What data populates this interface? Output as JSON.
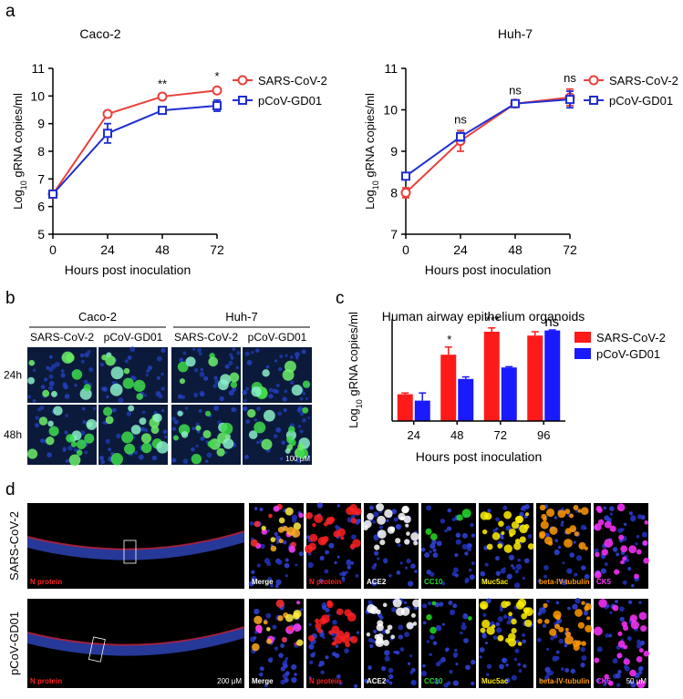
{
  "panel_labels": [
    "a",
    "b",
    "c",
    "d"
  ],
  "chart_data": [
    {
      "type": "line",
      "title": "Caco-2",
      "xlabel": "Hours post inoculation",
      "ylabel": [
        "Log",
        "10",
        " gRNA copies/ml"
      ],
      "x": [
        0,
        24,
        48,
        72
      ],
      "xlim": [
        0,
        72
      ],
      "xticks": [
        0,
        24,
        48,
        72
      ],
      "ylim": [
        5,
        11
      ],
      "yticks": [
        5,
        6,
        7,
        8,
        9,
        10,
        11
      ],
      "series": [
        {
          "name": "SARS-CoV-2",
          "color": "#e8413c",
          "marker": "circle",
          "values": [
            6.45,
            9.35,
            9.98,
            10.2
          ],
          "errors": [
            0.05,
            0.05,
            0.05,
            0.1
          ]
        },
        {
          "name": "pCoV-GD01",
          "color": "#1f2fd0",
          "marker": "square",
          "values": [
            6.45,
            8.65,
            9.48,
            9.65
          ],
          "errors": [
            0.05,
            0.35,
            0.12,
            0.2
          ]
        }
      ],
      "annotations": [
        {
          "x": 48,
          "label": "**"
        },
        {
          "x": 72,
          "label": "*"
        }
      ]
    },
    {
      "type": "line",
      "title": "Huh-7",
      "xlabel": "Hours post inoculation",
      "ylabel": [
        "Log",
        "10",
        " gRNA copies/ml"
      ],
      "x": [
        0,
        24,
        48,
        72
      ],
      "xlim": [
        0,
        72
      ],
      "xticks": [
        0,
        24,
        48,
        72
      ],
      "ylim": [
        7,
        11
      ],
      "yticks": [
        7,
        8,
        9,
        10,
        11
      ],
      "series": [
        {
          "name": "SARS-CoV-2",
          "color": "#e8413c",
          "marker": "circle",
          "values": [
            8.0,
            9.25,
            10.15,
            10.3
          ],
          "errors": [
            0.12,
            0.25,
            0.05,
            0.2
          ]
        },
        {
          "name": "pCoV-GD01",
          "color": "#1f2fd0",
          "marker": "square",
          "values": [
            8.4,
            9.35,
            10.15,
            10.25
          ],
          "errors": [
            0.05,
            0.1,
            0.05,
            0.2
          ]
        }
      ],
      "annotations": [
        {
          "x": 24,
          "label": "ns"
        },
        {
          "x": 48,
          "label": "ns"
        },
        {
          "x": 72,
          "label": "ns"
        }
      ]
    },
    {
      "type": "bar",
      "title": "Human airway epithelium organoids",
      "xlabel": "Hours post inoculation",
      "ylabel": [
        "Log",
        "10",
        " gRNA copies/ml"
      ],
      "categories": [
        "24",
        "48",
        "72",
        "96"
      ],
      "ylim": [
        6,
        10
      ],
      "series": [
        {
          "name": "SARS-CoV-2",
          "color": "#ff1a1a",
          "values": [
            7.05,
            8.6,
            9.5,
            9.35
          ],
          "errors": [
            0.05,
            0.3,
            0.15,
            0.15
          ]
        },
        {
          "name": "pCoV-GD01",
          "color": "#1a1aff",
          "values": [
            6.8,
            7.65,
            8.1,
            9.55
          ],
          "errors": [
            0.3,
            0.08,
            0.03,
            0.02
          ]
        }
      ],
      "annotations": [
        {
          "category": "48",
          "label": "*"
        },
        {
          "category": "72",
          "label": "***"
        },
        {
          "category": "96",
          "label": "ns"
        }
      ]
    }
  ],
  "panel_b": {
    "groups": [
      "Caco-2",
      "Huh-7"
    ],
    "columns": [
      "SARS-CoV-2",
      "pCoV-GD01",
      "SARS-CoV-2",
      "pCoV-GD01"
    ],
    "rows": [
      "24h",
      "48h"
    ],
    "scale": "100 μM"
  },
  "panel_d": {
    "rows": [
      "SARS-CoV-2",
      "pCoV-GD01"
    ],
    "overview_label": "N protein",
    "overview_scale": "200 μM",
    "stains": [
      {
        "label": "Merge",
        "color": "#ffffff"
      },
      {
        "label": "N protein",
        "color": "#ff2020"
      },
      {
        "label": "ACE2",
        "color": "#ffffff"
      },
      {
        "label": "CC10",
        "color": "#22dd22"
      },
      {
        "label": "Muc5ac",
        "color": "#ffee00"
      },
      {
        "label": "beta-IV-tubulin",
        "color": "#ff9900"
      },
      {
        "label": "CK5",
        "color": "#ff33ff"
      }
    ],
    "scale": "50 μM"
  }
}
